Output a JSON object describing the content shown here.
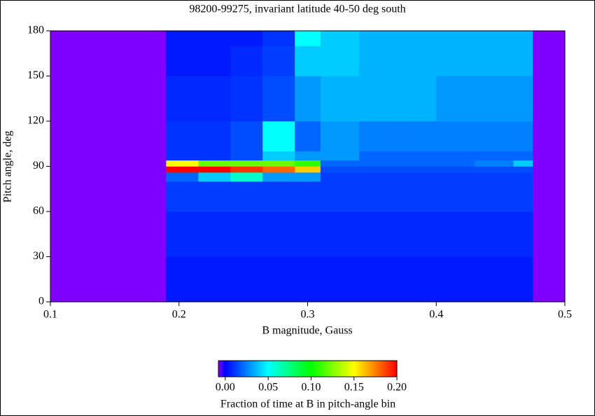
{
  "chart_data": {
    "type": "heatmap",
    "title": "98200-99275, invariant latitude 40-50 deg south",
    "x_label": "B magnitude, Gauss",
    "y_label": "Pitch angle, deg",
    "colorbar_label": "Fraction of time at B in pitch-angle bin",
    "xlim": [
      0.1,
      0.5
    ],
    "xticks": [
      0.1,
      0.2,
      0.3,
      0.4,
      0.5
    ],
    "ylim": [
      0,
      180
    ],
    "yticks": [
      0,
      30,
      60,
      90,
      120,
      150,
      180
    ],
    "x_edges": [
      0.19,
      0.215,
      0.24,
      0.265,
      0.29,
      0.31,
      0.34,
      0.37,
      0.4,
      0.43,
      0.46,
      0.475
    ],
    "y_edges": [
      0,
      30,
      60,
      80,
      86,
      90,
      94,
      100,
      120,
      150,
      170,
      180
    ],
    "values": [
      [
        0.005,
        0.005,
        0.005,
        0.005,
        0.005,
        0.005,
        0.005,
        0.005,
        0.005,
        0.005,
        0.005
      ],
      [
        0.008,
        0.008,
        0.008,
        0.008,
        0.008,
        0.008,
        0.008,
        0.008,
        0.008,
        0.008,
        0.008
      ],
      [
        0.012,
        0.012,
        0.012,
        0.012,
        0.012,
        0.012,
        0.012,
        0.012,
        0.012,
        0.012,
        0.012
      ],
      [
        0.02,
        0.04,
        0.06,
        0.03,
        0.03,
        0.012,
        0.012,
        0.012,
        0.012,
        0.012,
        0.012
      ],
      [
        0.2,
        0.2,
        0.19,
        0.18,
        0.16,
        0.015,
        0.015,
        0.015,
        0.015,
        0.015,
        0.015
      ],
      [
        0.15,
        0.12,
        0.12,
        0.12,
        0.11,
        0.02,
        0.02,
        0.02,
        0.02,
        0.025,
        0.04
      ],
      [
        0.01,
        0.01,
        0.015,
        0.04,
        0.03,
        0.03,
        0.02,
        0.02,
        0.02,
        0.02,
        0.02
      ],
      [
        0.01,
        0.01,
        0.015,
        0.05,
        0.02,
        0.03,
        0.025,
        0.025,
        0.025,
        0.025,
        0.025
      ],
      [
        0.008,
        0.008,
        0.01,
        0.015,
        0.03,
        0.035,
        0.035,
        0.035,
        0.03,
        0.03,
        0.03
      ],
      [
        0.005,
        0.005,
        0.008,
        0.012,
        0.04,
        0.04,
        0.035,
        0.035,
        0.035,
        0.035,
        0.035
      ],
      [
        0.005,
        0.005,
        0.005,
        0.01,
        0.05,
        0.04,
        0.035,
        0.035,
        0.035,
        0.035,
        0.035
      ]
    ],
    "background_color": "#7f00ff",
    "clim": [
      -0.008,
      0.2
    ],
    "colormap": {
      "stops": [
        -0.008,
        0.0,
        0.05,
        0.1,
        0.15,
        0.2
      ],
      "colors": [
        "#8000ff",
        "#0000ff",
        "#00ffff",
        "#00ff00",
        "#ffff00",
        "#ff0000"
      ]
    },
    "colorbar_ticks": [
      {
        "value": 0,
        "label": "0.00"
      },
      {
        "value": 0.05,
        "label": "0.05"
      },
      {
        "value": 0.1,
        "label": "0.10"
      },
      {
        "value": 0.15,
        "label": "0.15"
      },
      {
        "value": 0.2,
        "label": "0.20"
      }
    ]
  }
}
